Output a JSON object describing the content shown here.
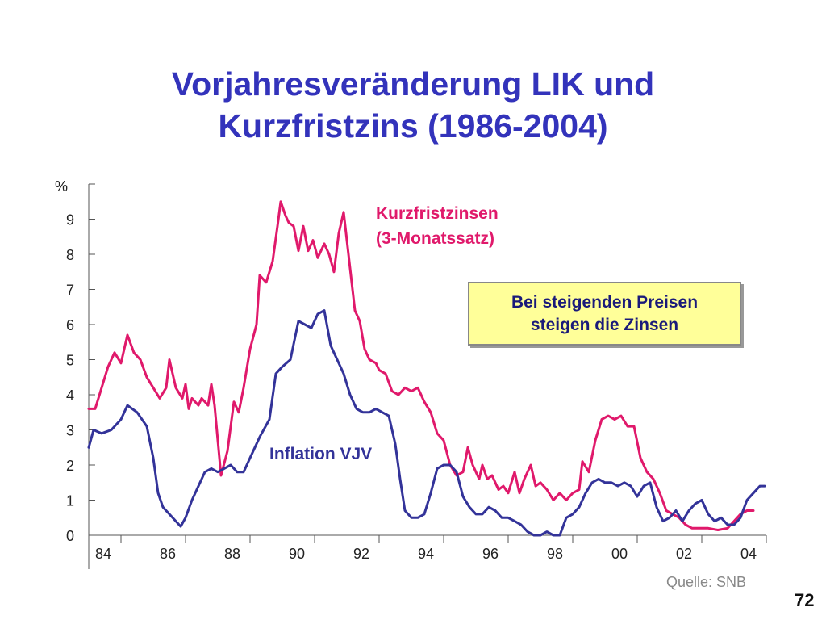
{
  "slide": {
    "title_line1": "Vorjahresveränderung LIK und",
    "title_line2": "Kurzfristzins (1986-2004)",
    "callout_line1": "Bei steigenden Preisen",
    "callout_line2": "steigen die Zinsen",
    "source": "Quelle: SNB",
    "page_number": "72"
  },
  "chart_data": {
    "type": "line",
    "ylabel": "%",
    "ylim": [
      0,
      10
    ],
    "yticks": [
      "0",
      "1",
      "2",
      "3",
      "4",
      "5",
      "6",
      "7",
      "8",
      "9"
    ],
    "xlim": [
      1984.0,
      2005.0
    ],
    "x_tick_labels": [
      "84",
      "86",
      "88",
      "90",
      "92",
      "94",
      "96",
      "98",
      "00",
      "02",
      "04"
    ],
    "grid": false,
    "series": [
      {
        "name": "Kurzfristzinsen",
        "label_line1": "Kurzfristzinsen",
        "label_line2": "(3-Monatssatz)",
        "color": "#e0196b",
        "points": [
          [
            1984.0,
            3.6
          ],
          [
            1984.2,
            3.6
          ],
          [
            1984.4,
            4.2
          ],
          [
            1984.6,
            4.8
          ],
          [
            1984.8,
            5.2
          ],
          [
            1985.0,
            4.9
          ],
          [
            1985.2,
            5.7
          ],
          [
            1985.4,
            5.2
          ],
          [
            1985.6,
            5.0
          ],
          [
            1985.8,
            4.5
          ],
          [
            1986.0,
            4.2
          ],
          [
            1986.2,
            3.9
          ],
          [
            1986.4,
            4.2
          ],
          [
            1986.5,
            5.0
          ],
          [
            1986.7,
            4.2
          ],
          [
            1986.9,
            3.9
          ],
          [
            1987.0,
            4.3
          ],
          [
            1987.1,
            3.6
          ],
          [
            1987.2,
            3.9
          ],
          [
            1987.4,
            3.7
          ],
          [
            1987.5,
            3.9
          ],
          [
            1987.7,
            3.7
          ],
          [
            1987.8,
            4.3
          ],
          [
            1987.9,
            3.7
          ],
          [
            1988.1,
            1.7
          ],
          [
            1988.3,
            2.4
          ],
          [
            1988.5,
            3.8
          ],
          [
            1988.65,
            3.5
          ],
          [
            1988.8,
            4.2
          ],
          [
            1989.0,
            5.3
          ],
          [
            1989.2,
            6.0
          ],
          [
            1989.3,
            7.4
          ],
          [
            1989.5,
            7.2
          ],
          [
            1989.7,
            7.8
          ],
          [
            1989.85,
            8.8
          ],
          [
            1989.95,
            9.5
          ],
          [
            1990.1,
            9.1
          ],
          [
            1990.2,
            8.9
          ],
          [
            1990.35,
            8.8
          ],
          [
            1990.5,
            8.1
          ],
          [
            1990.65,
            8.8
          ],
          [
            1990.8,
            8.1
          ],
          [
            1990.95,
            8.4
          ],
          [
            1991.1,
            7.9
          ],
          [
            1991.3,
            8.3
          ],
          [
            1991.45,
            8.0
          ],
          [
            1991.6,
            7.5
          ],
          [
            1991.75,
            8.6
          ],
          [
            1991.9,
            9.2
          ],
          [
            1992.1,
            7.6
          ],
          [
            1992.25,
            6.4
          ],
          [
            1992.4,
            6.1
          ],
          [
            1992.55,
            5.3
          ],
          [
            1992.7,
            5.0
          ],
          [
            1992.9,
            4.9
          ],
          [
            1993.0,
            4.7
          ],
          [
            1993.2,
            4.6
          ],
          [
            1993.4,
            4.1
          ],
          [
            1993.6,
            4.0
          ],
          [
            1993.8,
            4.2
          ],
          [
            1994.0,
            4.1
          ],
          [
            1994.2,
            4.2
          ],
          [
            1994.4,
            3.8
          ],
          [
            1994.6,
            3.5
          ],
          [
            1994.8,
            2.9
          ],
          [
            1995.0,
            2.7
          ],
          [
            1995.2,
            2.0
          ],
          [
            1995.4,
            1.7
          ],
          [
            1995.6,
            1.8
          ],
          [
            1995.75,
            2.5
          ],
          [
            1995.9,
            2.0
          ],
          [
            1996.1,
            1.6
          ],
          [
            1996.2,
            2.0
          ],
          [
            1996.35,
            1.6
          ],
          [
            1996.5,
            1.7
          ],
          [
            1996.7,
            1.3
          ],
          [
            1996.85,
            1.4
          ],
          [
            1997.0,
            1.2
          ],
          [
            1997.2,
            1.8
          ],
          [
            1997.35,
            1.2
          ],
          [
            1997.5,
            1.6
          ],
          [
            1997.7,
            2.0
          ],
          [
            1997.85,
            1.4
          ],
          [
            1998.0,
            1.5
          ],
          [
            1998.2,
            1.3
          ],
          [
            1998.4,
            1.0
          ],
          [
            1998.6,
            1.2
          ],
          [
            1998.8,
            1.0
          ],
          [
            1999.0,
            1.2
          ],
          [
            1999.2,
            1.3
          ],
          [
            1999.3,
            2.1
          ],
          [
            1999.5,
            1.8
          ],
          [
            1999.7,
            2.7
          ],
          [
            1999.9,
            3.3
          ],
          [
            2000.1,
            3.4
          ],
          [
            2000.3,
            3.3
          ],
          [
            2000.5,
            3.4
          ],
          [
            2000.7,
            3.1
          ],
          [
            2000.9,
            3.1
          ],
          [
            2001.1,
            2.2
          ],
          [
            2001.3,
            1.8
          ],
          [
            2001.5,
            1.6
          ],
          [
            2001.7,
            1.2
          ],
          [
            2001.9,
            0.7
          ],
          [
            2002.1,
            0.6
          ],
          [
            2002.3,
            0.5
          ],
          [
            2002.5,
            0.3
          ],
          [
            2002.7,
            0.2
          ],
          [
            2002.9,
            0.2
          ],
          [
            2003.2,
            0.2
          ],
          [
            2003.5,
            0.15
          ],
          [
            2003.8,
            0.2
          ],
          [
            2004.0,
            0.4
          ],
          [
            2004.2,
            0.6
          ],
          [
            2004.4,
            0.7
          ],
          [
            2004.6,
            0.7
          ]
        ]
      },
      {
        "name": "Inflation VJV",
        "label_line1": "Inflation VJV",
        "color": "#333399",
        "points": [
          [
            1984.0,
            2.5
          ],
          [
            1984.15,
            3.0
          ],
          [
            1984.4,
            2.9
          ],
          [
            1984.7,
            3.0
          ],
          [
            1985.0,
            3.3
          ],
          [
            1985.2,
            3.7
          ],
          [
            1985.5,
            3.5
          ],
          [
            1985.8,
            3.1
          ],
          [
            1986.0,
            2.2
          ],
          [
            1986.15,
            1.2
          ],
          [
            1986.3,
            0.8
          ],
          [
            1986.5,
            0.6
          ],
          [
            1986.7,
            0.4
          ],
          [
            1986.85,
            0.25
          ],
          [
            1987.0,
            0.5
          ],
          [
            1987.2,
            1.0
          ],
          [
            1987.4,
            1.4
          ],
          [
            1987.6,
            1.8
          ],
          [
            1987.8,
            1.9
          ],
          [
            1988.0,
            1.8
          ],
          [
            1988.2,
            1.9
          ],
          [
            1988.4,
            2.0
          ],
          [
            1988.6,
            1.8
          ],
          [
            1988.8,
            1.8
          ],
          [
            1989.0,
            2.2
          ],
          [
            1989.3,
            2.8
          ],
          [
            1989.6,
            3.3
          ],
          [
            1989.8,
            4.6
          ],
          [
            1990.0,
            4.8
          ],
          [
            1990.25,
            5.0
          ],
          [
            1990.5,
            6.1
          ],
          [
            1990.7,
            6.0
          ],
          [
            1990.9,
            5.9
          ],
          [
            1991.1,
            6.3
          ],
          [
            1991.3,
            6.4
          ],
          [
            1991.5,
            5.4
          ],
          [
            1991.7,
            5.0
          ],
          [
            1991.9,
            4.6
          ],
          [
            1992.1,
            4.0
          ],
          [
            1992.3,
            3.6
          ],
          [
            1992.5,
            3.5
          ],
          [
            1992.7,
            3.5
          ],
          [
            1992.9,
            3.6
          ],
          [
            1993.1,
            3.5
          ],
          [
            1993.3,
            3.4
          ],
          [
            1993.5,
            2.6
          ],
          [
            1993.65,
            1.6
          ],
          [
            1993.8,
            0.7
          ],
          [
            1994.0,
            0.5
          ],
          [
            1994.2,
            0.5
          ],
          [
            1994.4,
            0.6
          ],
          [
            1994.6,
            1.2
          ],
          [
            1994.8,
            1.9
          ],
          [
            1995.0,
            2.0
          ],
          [
            1995.2,
            2.0
          ],
          [
            1995.4,
            1.8
          ],
          [
            1995.6,
            1.1
          ],
          [
            1995.8,
            0.8
          ],
          [
            1996.0,
            0.6
          ],
          [
            1996.2,
            0.6
          ],
          [
            1996.4,
            0.8
          ],
          [
            1996.6,
            0.7
          ],
          [
            1996.8,
            0.5
          ],
          [
            1997.0,
            0.5
          ],
          [
            1997.2,
            0.4
          ],
          [
            1997.4,
            0.3
          ],
          [
            1997.6,
            0.1
          ],
          [
            1997.8,
            0.0
          ],
          [
            1998.0,
            0.0
          ],
          [
            1998.2,
            0.1
          ],
          [
            1998.4,
            0.0
          ],
          [
            1998.6,
            0.0
          ],
          [
            1998.8,
            0.5
          ],
          [
            1999.0,
            0.6
          ],
          [
            1999.2,
            0.8
          ],
          [
            1999.4,
            1.2
          ],
          [
            1999.6,
            1.5
          ],
          [
            1999.8,
            1.6
          ],
          [
            2000.0,
            1.5
          ],
          [
            2000.2,
            1.5
          ],
          [
            2000.4,
            1.4
          ],
          [
            2000.6,
            1.5
          ],
          [
            2000.8,
            1.4
          ],
          [
            2001.0,
            1.1
          ],
          [
            2001.2,
            1.4
          ],
          [
            2001.4,
            1.5
          ],
          [
            2001.6,
            0.8
          ],
          [
            2001.8,
            0.4
          ],
          [
            2002.0,
            0.5
          ],
          [
            2002.2,
            0.7
          ],
          [
            2002.4,
            0.4
          ],
          [
            2002.6,
            0.7
          ],
          [
            2002.8,
            0.9
          ],
          [
            2003.0,
            1.0
          ],
          [
            2003.2,
            0.6
          ],
          [
            2003.4,
            0.4
          ],
          [
            2003.6,
            0.5
          ],
          [
            2003.8,
            0.3
          ],
          [
            2004.0,
            0.3
          ],
          [
            2004.2,
            0.5
          ],
          [
            2004.4,
            1.0
          ],
          [
            2004.6,
            1.2
          ],
          [
            2004.8,
            1.4
          ],
          [
            2004.95,
            1.4
          ]
        ]
      }
    ]
  }
}
